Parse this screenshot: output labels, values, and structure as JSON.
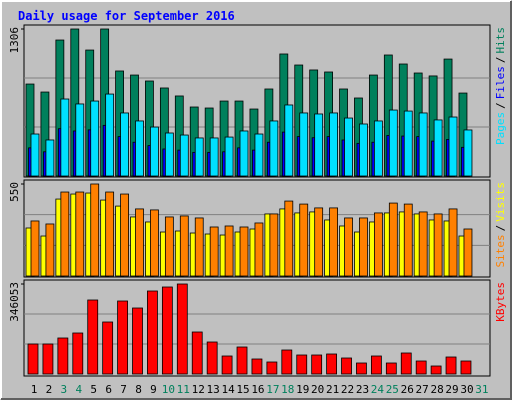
{
  "chart_data": [
    {
      "type": "bar",
      "title": "Daily usage for September 2016",
      "legend_separator": "/",
      "series": [
        {
          "name": "Hits",
          "color": "#00805c",
          "values": [
            817,
            746,
            1208,
            1306,
            1119,
            1306,
            933,
            897,
            844,
            782,
            711,
            613,
            604,
            666,
            666,
            595,
            773,
            1084,
            986,
            942,
            924,
            773,
            693,
            897,
            1075,
            995,
            915,
            889,
            1039,
            737,
            null
          ]
        },
        {
          "name": "Files",
          "color": "#0000ff",
          "values": [
            250,
            215,
            420,
            400,
            410,
            450,
            350,
            300,
            270,
            240,
            230,
            210,
            210,
            215,
            250,
            230,
            300,
            390,
            350,
            340,
            350,
            320,
            290,
            300,
            360,
            355,
            350,
            310,
            325,
            255,
            null
          ]
        },
        {
          "name": "Pages",
          "color": "#00e0ff",
          "values": [
            373,
            320,
            684,
            640,
            666,
            728,
            560,
            489,
            435,
            382,
            364,
            338,
            338,
            346,
            400,
            373,
            489,
            631,
            560,
            551,
            560,
            515,
            462,
            489,
            586,
            577,
            560,
            498,
            524,
            409,
            null
          ]
        }
      ],
      "ylim": [
        0,
        1306
      ],
      "yticks": [
        1306
      ]
    },
    {
      "type": "bar",
      "legend_separator": "/",
      "series": [
        {
          "name": "Visits",
          "color": "#ffff00",
          "values": [
            287,
            239,
            460,
            490,
            496,
            454,
            418,
            353,
            323,
            263,
            269,
            257,
            251,
            245,
            263,
            281,
            371,
            401,
            377,
            383,
            335,
            299,
            263,
            323,
            377,
            383,
            371,
            335,
            329,
            239,
            null
          ]
        },
        {
          "name": "Sites",
          "color": "#ff8000",
          "values": [
            329,
            311,
            502,
            502,
            550,
            502,
            490,
            401,
            395,
            353,
            359,
            347,
            293,
            299,
            293,
            317,
            371,
            448,
            430,
            407,
            407,
            347,
            347,
            377,
            436,
            430,
            383,
            371,
            401,
            281,
            null
          ]
        }
      ],
      "ylim": [
        0,
        550
      ],
      "yticks": [
        550
      ]
    },
    {
      "type": "bar",
      "categories": [
        "1",
        "2",
        "3",
        "4",
        "5",
        "6",
        "7",
        "8",
        "9",
        "10",
        "11",
        "12",
        "13",
        "14",
        "15",
        "16",
        "17",
        "18",
        "19",
        "20",
        "21",
        "22",
        "23",
        "24",
        "25",
        "26",
        "27",
        "28",
        "29",
        "30",
        "31"
      ],
      "label_colors": [
        "#000000",
        "#000000",
        "#00805c",
        "#00805c",
        "#000000",
        "#000000",
        "#000000",
        "#000000",
        "#000000",
        "#00805c",
        "#00805c",
        "#000000",
        "#000000",
        "#000000",
        "#000000",
        "#000000",
        "#00805c",
        "#00805c",
        "#000000",
        "#000000",
        "#000000",
        "#000000",
        "#000000",
        "#00805c",
        "#00805c",
        "#000000",
        "#000000",
        "#000000",
        "#000000",
        "#000000",
        "#00805c"
      ],
      "series": [
        {
          "name": "KBytes",
          "color": "#ff0000",
          "values": [
            115351,
            115351,
            138421,
            157646,
            284532,
            199942,
            280687,
            253772,
            319138,
            334518,
            346053,
            161491,
            123041,
            69211,
            103816,
            57675,
            46140,
            92281,
            73055,
            73055,
            76901,
            61520,
            42295,
            69211,
            42295,
            80745,
            49985,
            30760,
            65365,
            49985,
            null
          ]
        }
      ],
      "ylim": [
        0,
        346053
      ],
      "yticks": [
        346053
      ]
    }
  ]
}
